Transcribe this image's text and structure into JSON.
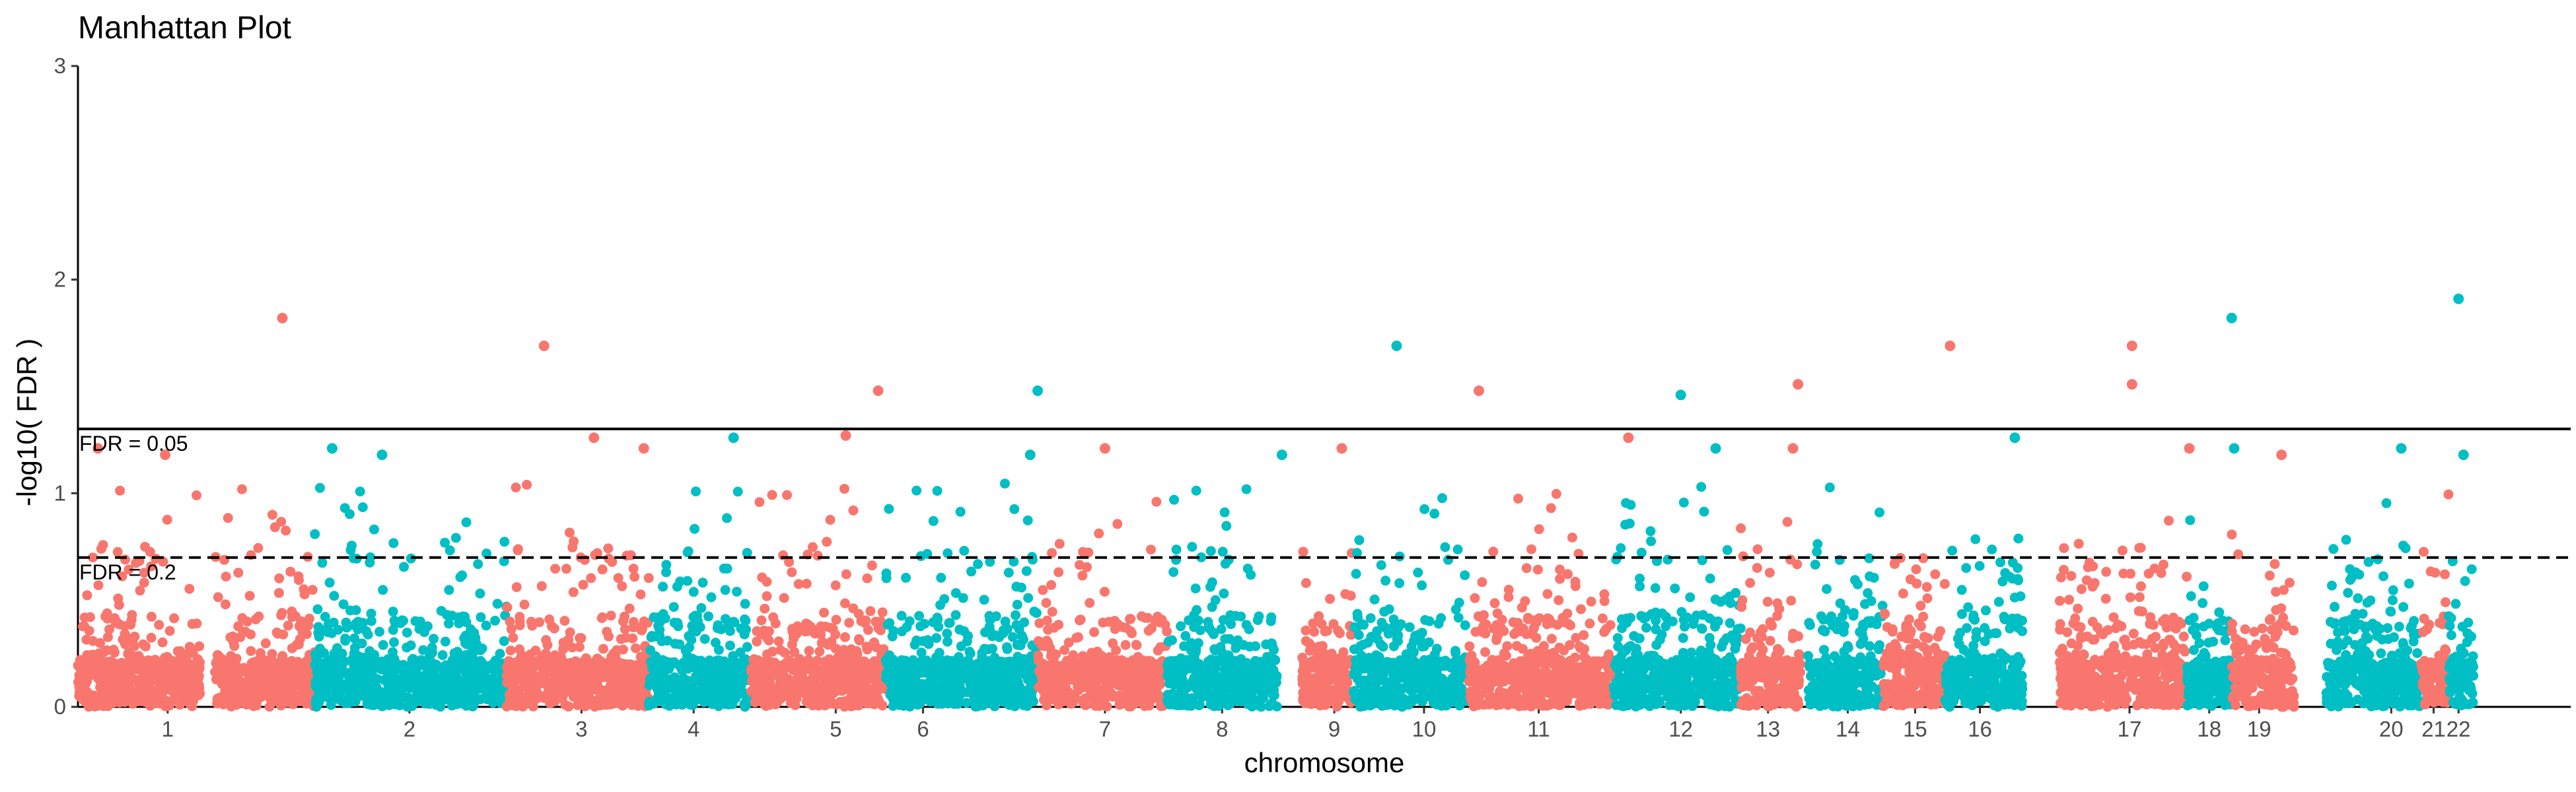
{
  "chart_data": {
    "type": "scatter",
    "title": "Manhattan Plot",
    "xlabel": "chromosome",
    "ylabel": "-log10( FDR )",
    "ylim": [
      0,
      3
    ],
    "yticks": [
      "0",
      "1",
      "2",
      "3"
    ],
    "grid": false,
    "legend": "none",
    "colors": {
      "odd": "#F8766D",
      "even": "#00BFC4",
      "line": "#000000"
    },
    "thresholds": [
      {
        "label": "FDR = 0.05",
        "y": 1.301,
        "style": "solid"
      },
      {
        "label": "FDR = 0.2",
        "y": 0.699,
        "style": "dashed"
      }
    ],
    "chromosomes": [
      {
        "label": "1",
        "start": 0.0,
        "end": 0.049,
        "tick": 0.036,
        "color": "odd"
      },
      {
        "label": "1",
        "start": 0.055,
        "end": 0.095,
        "tick": null,
        "color": "odd"
      },
      {
        "label": "2",
        "start": 0.095,
        "end": 0.172,
        "tick": 0.133,
        "color": "even"
      },
      {
        "label": "3",
        "start": 0.172,
        "end": 0.229,
        "tick": 0.202,
        "color": "odd"
      },
      {
        "label": "4",
        "start": 0.229,
        "end": 0.27,
        "tick": 0.247,
        "color": "even"
      },
      {
        "label": "5",
        "start": 0.27,
        "end": 0.324,
        "tick": 0.304,
        "color": "odd"
      },
      {
        "label": "6",
        "start": 0.324,
        "end": 0.385,
        "tick": 0.339,
        "color": "even"
      },
      {
        "label": "7",
        "start": 0.385,
        "end": 0.437,
        "tick": 0.412,
        "color": "odd"
      },
      {
        "label": "8",
        "start": 0.437,
        "end": 0.481,
        "tick": 0.459,
        "color": "even"
      },
      {
        "label": "9",
        "start": 0.491,
        "end": 0.511,
        "tick": 0.504,
        "color": "odd"
      },
      {
        "label": "10",
        "start": 0.511,
        "end": 0.558,
        "tick": 0.54,
        "color": "even"
      },
      {
        "label": "11",
        "start": 0.558,
        "end": 0.616,
        "tick": 0.586,
        "color": "odd"
      },
      {
        "label": "12",
        "start": 0.616,
        "end": 0.667,
        "tick": 0.643,
        "color": "even"
      },
      {
        "label": "13",
        "start": 0.667,
        "end": 0.691,
        "tick": 0.678,
        "color": "odd"
      },
      {
        "label": "14",
        "start": 0.694,
        "end": 0.724,
        "tick": 0.71,
        "color": "even"
      },
      {
        "label": "15",
        "start": 0.724,
        "end": 0.749,
        "tick": 0.737,
        "color": "odd"
      },
      {
        "label": "16",
        "start": 0.749,
        "end": 0.78,
        "tick": 0.763,
        "color": "even"
      },
      {
        "label": "17",
        "start": 0.795,
        "end": 0.846,
        "tick": 0.823,
        "color": "odd"
      },
      {
        "label": "18",
        "start": 0.846,
        "end": 0.864,
        "tick": 0.855,
        "color": "even"
      },
      {
        "label": "19",
        "start": 0.864,
        "end": 0.889,
        "tick": 0.875,
        "color": "odd"
      },
      {
        "label": "20",
        "start": 0.902,
        "end": 0.94,
        "tick": 0.928,
        "color": "even"
      },
      {
        "label": "21",
        "start": 0.94,
        "end": 0.951,
        "tick": 0.945,
        "color": "odd"
      },
      {
        "label": "22",
        "start": 0.951,
        "end": 0.961,
        "tick": 0.955,
        "color": "even"
      }
    ],
    "labeled_points": [
      {
        "x": 0.082,
        "y": 1.82,
        "chrom": "1"
      },
      {
        "x": 0.187,
        "y": 1.69,
        "chrom": "3"
      },
      {
        "x": 0.321,
        "y": 1.48,
        "chrom": "5"
      },
      {
        "x": 0.385,
        "y": 1.48,
        "chrom": "6"
      },
      {
        "x": 0.529,
        "y": 1.69,
        "chrom": "10"
      },
      {
        "x": 0.562,
        "y": 1.48,
        "chrom": "11"
      },
      {
        "x": 0.643,
        "y": 1.46,
        "chrom": "12"
      },
      {
        "x": 0.69,
        "y": 1.51,
        "chrom": "13"
      },
      {
        "x": 0.751,
        "y": 1.69,
        "chrom": "15"
      },
      {
        "x": 0.824,
        "y": 1.69,
        "chrom": "17"
      },
      {
        "x": 0.824,
        "y": 1.51,
        "chrom": "17"
      },
      {
        "x": 0.864,
        "y": 1.82,
        "chrom": "18"
      },
      {
        "x": 0.955,
        "y": 1.91,
        "chrom": "22"
      },
      {
        "x": 0.008,
        "y": 1.21,
        "chrom": "1"
      },
      {
        "x": 0.035,
        "y": 1.18,
        "chrom": "1"
      },
      {
        "x": 0.102,
        "y": 1.21,
        "chrom": "2"
      },
      {
        "x": 0.122,
        "y": 1.18,
        "chrom": "2"
      },
      {
        "x": 0.207,
        "y": 1.26,
        "chrom": "3"
      },
      {
        "x": 0.227,
        "y": 1.21,
        "chrom": "3"
      },
      {
        "x": 0.263,
        "y": 1.26,
        "chrom": "4"
      },
      {
        "x": 0.308,
        "y": 1.27,
        "chrom": "5"
      },
      {
        "x": 0.382,
        "y": 1.18,
        "chrom": "6"
      },
      {
        "x": 0.412,
        "y": 1.21,
        "chrom": "7"
      },
      {
        "x": 0.483,
        "y": 1.18,
        "chrom": "8"
      },
      {
        "x": 0.507,
        "y": 1.21,
        "chrom": "9"
      },
      {
        "x": 0.622,
        "y": 1.26,
        "chrom": "11"
      },
      {
        "x": 0.657,
        "y": 1.21,
        "chrom": "12"
      },
      {
        "x": 0.688,
        "y": 1.21,
        "chrom": "13"
      },
      {
        "x": 0.777,
        "y": 1.26,
        "chrom": "16"
      },
      {
        "x": 0.847,
        "y": 1.21,
        "chrom": "17"
      },
      {
        "x": 0.865,
        "y": 1.21,
        "chrom": "18"
      },
      {
        "x": 0.884,
        "y": 1.18,
        "chrom": "19"
      },
      {
        "x": 0.932,
        "y": 1.21,
        "chrom": "20"
      },
      {
        "x": 0.957,
        "y": 1.18,
        "chrom": "22"
      }
    ]
  }
}
